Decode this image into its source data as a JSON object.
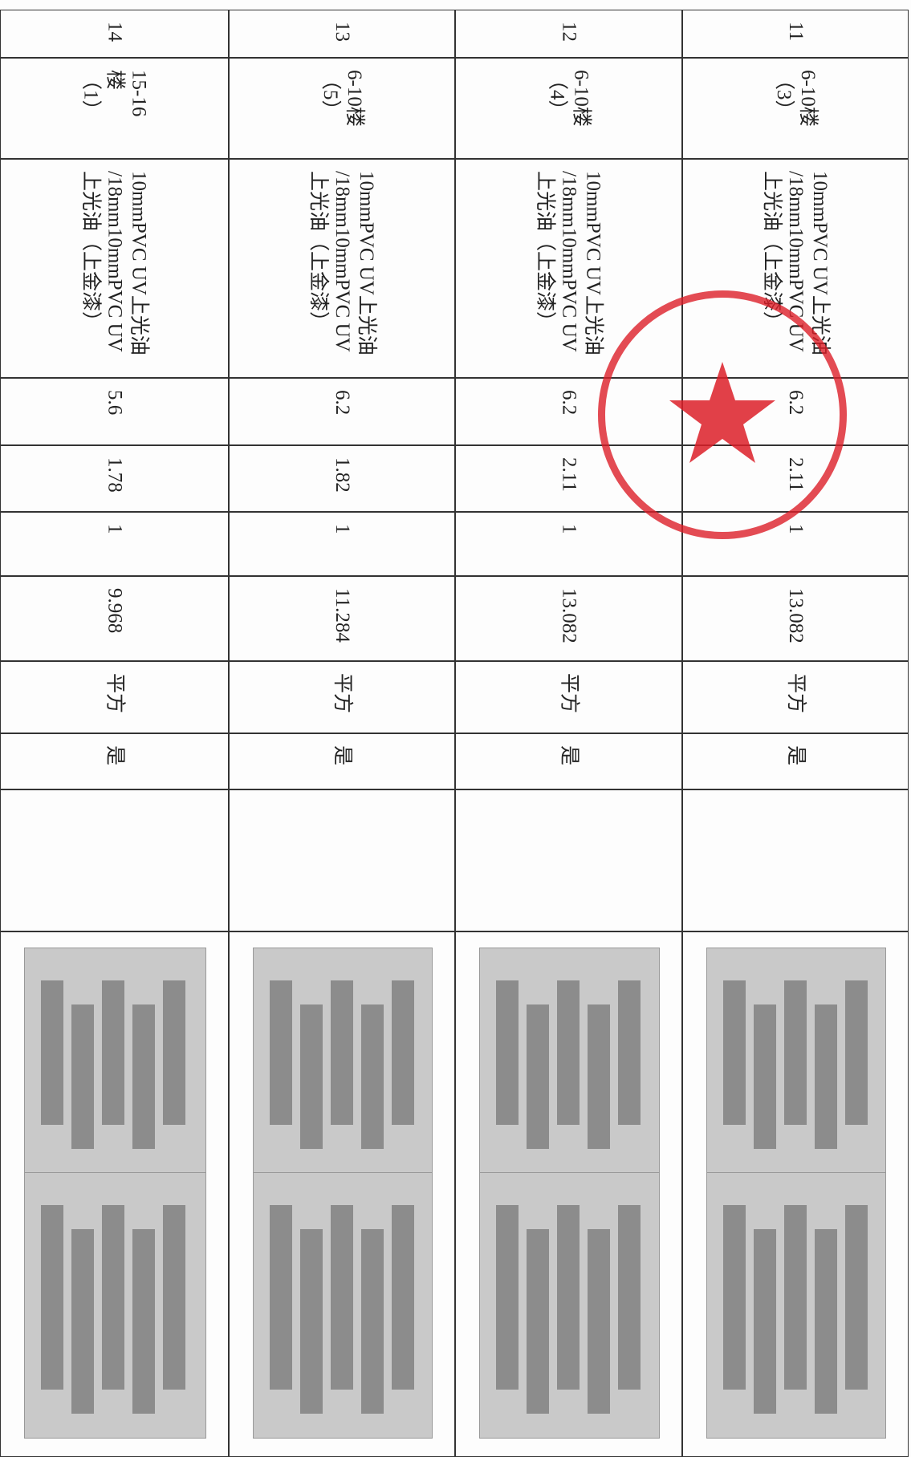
{
  "table": {
    "rows": [
      {
        "no": "11",
        "location": [
          "6-10楼",
          "（3）"
        ],
        "material": [
          "10mmPVC UV上光油",
          "/18mm10mmPVC UV",
          "上光油（上金漆）"
        ],
        "length": "6.2",
        "width": "2.11",
        "qty": "1",
        "area": "13.082",
        "unit": "平方",
        "flag": "是"
      },
      {
        "no": "12",
        "location": [
          "6-10楼",
          "（4）"
        ],
        "material": [
          "10mmPVC UV上光油",
          "/18mm10mmPVC UV",
          "上光油（上金漆）"
        ],
        "length": "6.2",
        "width": "2.11",
        "qty": "1",
        "area": "13.082",
        "unit": "平方",
        "flag": "是"
      },
      {
        "no": "13",
        "location": [
          "6-10楼",
          "（5）"
        ],
        "material": [
          "10mmPVC UV上光油",
          "/18mm10mmPVC UV",
          "上光油（上金漆）"
        ],
        "length": "6.2",
        "width": "1.82",
        "qty": "1",
        "area": "11.284",
        "unit": "平方",
        "flag": "是"
      },
      {
        "no": "14",
        "location": [
          "15-16",
          "楼",
          "（1）"
        ],
        "material": [
          "10mmPVC UV上光油",
          "/18mm10mmPVC UV",
          "上光油（上金漆）"
        ],
        "length": "5.6",
        "width": "1.78",
        "qty": "1",
        "area": "9.968",
        "unit": "平方",
        "flag": "是"
      }
    ]
  }
}
